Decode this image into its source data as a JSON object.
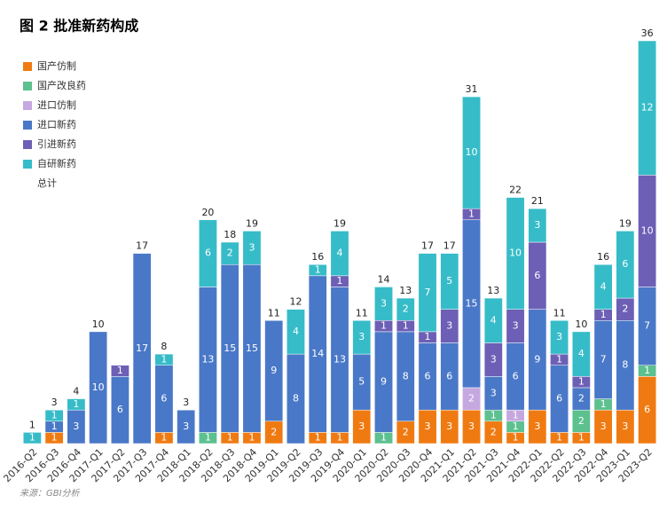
{
  "chart_data": {
    "type": "stacked-bar",
    "title": "图 2  批准新药构成",
    "source": "来源：GBI分析",
    "categories": [
      "2016-Q2",
      "2016-Q3",
      "2016-Q4",
      "2017-Q1",
      "2017-Q2",
      "2017-Q3",
      "2017-Q4",
      "2018-Q1",
      "2018-Q2",
      "2018-Q3",
      "2018-Q4",
      "2019-Q1",
      "2019-Q2",
      "2019-Q3",
      "2019-Q4",
      "2020-Q1",
      "2020-Q2",
      "2020-Q3",
      "2020-Q4",
      "2021-Q1",
      "2021-Q2",
      "2021-Q3",
      "2021-Q4",
      "2022-Q1",
      "2022-Q2",
      "2022-Q3",
      "2022-Q4",
      "2023-Q1",
      "2023-Q2"
    ],
    "series": [
      {
        "name": "国产仿制",
        "color": "#f07a12",
        "values": [
          0,
          1,
          0,
          0,
          0,
          0,
          1,
          0,
          0,
          1,
          1,
          2,
          0,
          1,
          1,
          3,
          0,
          2,
          3,
          3,
          3,
          2,
          1,
          3,
          1,
          1,
          3,
          3,
          6
        ]
      },
      {
        "name": "国产改良药",
        "color": "#5cc08f",
        "values": [
          0,
          0,
          0,
          0,
          0,
          0,
          0,
          0,
          1,
          0,
          0,
          0,
          0,
          0,
          0,
          0,
          1,
          0,
          0,
          0,
          0,
          1,
          1,
          0,
          0,
          2,
          1,
          0,
          1
        ]
      },
      {
        "name": "进口仿制",
        "color": "#c5a8e0",
        "values": [
          0,
          0,
          0,
          0,
          0,
          0,
          0,
          0,
          0,
          0,
          0,
          0,
          0,
          0,
          0,
          0,
          0,
          0,
          0,
          0,
          2,
          0,
          1,
          0,
          0,
          0,
          0,
          0,
          0
        ]
      },
      {
        "name": "进口新药",
        "color": "#4a78c8",
        "values": [
          0,
          1,
          3,
          10,
          6,
          17,
          6,
          3,
          13,
          15,
          15,
          9,
          8,
          14,
          13,
          5,
          9,
          8,
          6,
          6,
          15,
          3,
          6,
          9,
          6,
          2,
          7,
          8,
          7
        ]
      },
      {
        "name": "引进新药",
        "color": "#6c5fb5",
        "values": [
          0,
          0,
          0,
          0,
          1,
          0,
          0,
          0,
          0,
          0,
          0,
          0,
          0,
          0,
          1,
          0,
          1,
          1,
          1,
          3,
          1,
          3,
          3,
          6,
          1,
          1,
          1,
          2,
          10
        ]
      },
      {
        "name": "自研新药",
        "color": "#36bcc8",
        "values": [
          1,
          1,
          1,
          0,
          0,
          0,
          1,
          0,
          6,
          2,
          3,
          0,
          4,
          1,
          4,
          3,
          3,
          2,
          7,
          5,
          10,
          4,
          10,
          3,
          3,
          4,
          4,
          6,
          12
        ]
      }
    ],
    "total": {
      "name": "总计",
      "values": [
        1,
        3,
        4,
        10,
        null,
        17,
        8,
        3,
        20,
        18,
        19,
        11,
        12,
        16,
        19,
        11,
        14,
        13,
        17,
        17,
        31,
        13,
        22,
        21,
        11,
        10,
        16,
        19,
        36
      ]
    },
    "ylim": [
      0,
      36
    ]
  }
}
